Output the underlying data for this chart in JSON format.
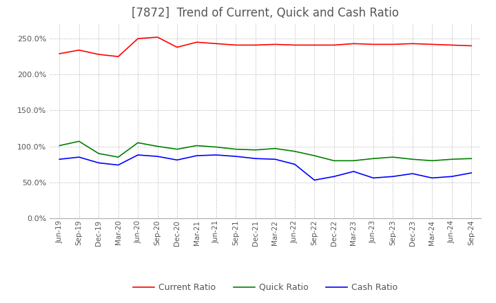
{
  "title": "[7872]  Trend of Current, Quick and Cash Ratio",
  "title_fontsize": 12,
  "x_labels": [
    "Jun-19",
    "Sep-19",
    "Dec-19",
    "Mar-20",
    "Jun-20",
    "Sep-20",
    "Dec-20",
    "Mar-21",
    "Jun-21",
    "Sep-21",
    "Dec-21",
    "Mar-22",
    "Jun-22",
    "Sep-22",
    "Dec-22",
    "Mar-23",
    "Jun-23",
    "Sep-23",
    "Dec-23",
    "Mar-24",
    "Jun-24",
    "Sep-24"
  ],
  "current_ratio": [
    229,
    234,
    228,
    225,
    250,
    252,
    238,
    245,
    243,
    241,
    241,
    242,
    241,
    241,
    241,
    243,
    242,
    242,
    243,
    242,
    241,
    240
  ],
  "quick_ratio": [
    101,
    107,
    90,
    85,
    105,
    100,
    96,
    101,
    99,
    96,
    95,
    97,
    93,
    87,
    80,
    80,
    83,
    85,
    82,
    80,
    82,
    83
  ],
  "cash_ratio": [
    82,
    85,
    77,
    74,
    88,
    86,
    81,
    87,
    88,
    86,
    83,
    82,
    75,
    53,
    58,
    65,
    56,
    58,
    62,
    56,
    58,
    63
  ],
  "current_color": "#FF0000",
  "quick_color": "#008000",
  "cash_color": "#0000FF",
  "ylim": [
    0,
    270
  ],
  "yticks": [
    0,
    50,
    100,
    150,
    200,
    250
  ],
  "bg_color": "#FFFFFF",
  "plot_bg_color": "#FFFFFF",
  "grid_color": "#AAAAAA",
  "legend_labels": [
    "Current Ratio",
    "Quick Ratio",
    "Cash Ratio"
  ]
}
